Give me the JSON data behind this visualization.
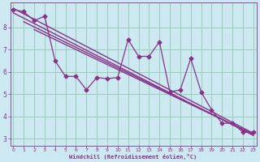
{
  "xlabel": "Windchill (Refroidissement éolien,°C)",
  "background_color": "#cce8f0",
  "grid_color": "#99ccbb",
  "line_color": "#883388",
  "x_ticks": [
    0,
    1,
    2,
    3,
    4,
    5,
    6,
    7,
    8,
    9,
    10,
    11,
    12,
    13,
    14,
    15,
    16,
    17,
    18,
    19,
    20,
    21,
    22,
    23
  ],
  "y_ticks": [
    3,
    4,
    5,
    6,
    7,
    8
  ],
  "xlim": [
    -0.3,
    23.3
  ],
  "ylim": [
    2.7,
    9.1
  ],
  "zigzag_x": [
    0,
    1,
    2,
    3,
    4,
    5,
    6,
    7,
    8,
    9,
    10,
    11,
    12,
    13,
    14,
    15,
    16,
    17,
    18,
    19,
    20,
    21,
    22,
    23
  ],
  "zigzag_y": [
    8.8,
    8.7,
    8.3,
    8.5,
    6.5,
    5.8,
    5.8,
    5.2,
    5.75,
    5.7,
    5.75,
    7.45,
    6.7,
    6.7,
    7.35,
    5.1,
    5.2,
    6.6,
    5.1,
    4.3,
    3.7,
    3.7,
    3.3,
    3.3
  ],
  "trend_lines": [
    {
      "x0": 0,
      "y0": 8.85,
      "x1": 23,
      "y1": 3.25
    },
    {
      "x0": 0,
      "y0": 8.65,
      "x1": 23,
      "y1": 3.15
    },
    {
      "x0": 1,
      "y0": 8.25,
      "x1": 23,
      "y1": 3.2
    },
    {
      "x0": 2,
      "y0": 7.9,
      "x1": 23,
      "y1": 3.2
    }
  ]
}
